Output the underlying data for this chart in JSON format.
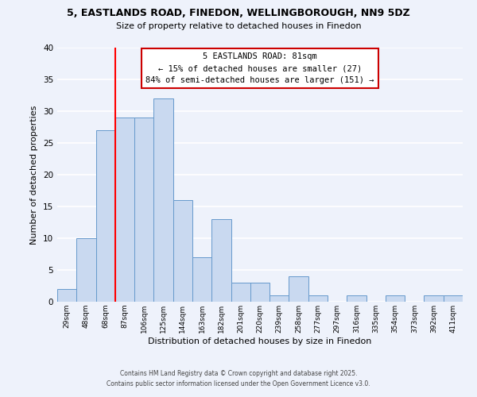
{
  "title": "5, EASTLANDS ROAD, FINEDON, WELLINGBOROUGH, NN9 5DZ",
  "subtitle": "Size of property relative to detached houses in Finedon",
  "xlabel": "Distribution of detached houses by size in Finedon",
  "ylabel": "Number of detached properties",
  "bar_labels": [
    "29sqm",
    "48sqm",
    "68sqm",
    "87sqm",
    "106sqm",
    "125sqm",
    "144sqm",
    "163sqm",
    "182sqm",
    "201sqm",
    "220sqm",
    "239sqm",
    "258sqm",
    "277sqm",
    "297sqm",
    "316sqm",
    "335sqm",
    "354sqm",
    "373sqm",
    "392sqm",
    "411sqm"
  ],
  "bar_heights": [
    2,
    10,
    27,
    29,
    29,
    32,
    16,
    7,
    13,
    3,
    3,
    1,
    4,
    1,
    0,
    1,
    0,
    1,
    0,
    1,
    1
  ],
  "bar_color": "#c9d9f0",
  "bar_edge_color": "#6699cc",
  "ylim": [
    0,
    40
  ],
  "yticks": [
    0,
    5,
    10,
    15,
    20,
    25,
    30,
    35,
    40
  ],
  "vline_color": "red",
  "vline_index": 2.5,
  "annotation_line0": "5 EASTLANDS ROAD: 81sqm",
  "annotation_line1": "← 15% of detached houses are smaller (27)",
  "annotation_line2": "84% of semi-detached houses are larger (151) →",
  "annotation_box_color": "white",
  "annotation_box_edge": "#cc0000",
  "background_color": "#eef2fb",
  "grid_color": "white",
  "footer_line1": "Contains HM Land Registry data © Crown copyright and database right 2025.",
  "footer_line2": "Contains public sector information licensed under the Open Government Licence v3.0."
}
